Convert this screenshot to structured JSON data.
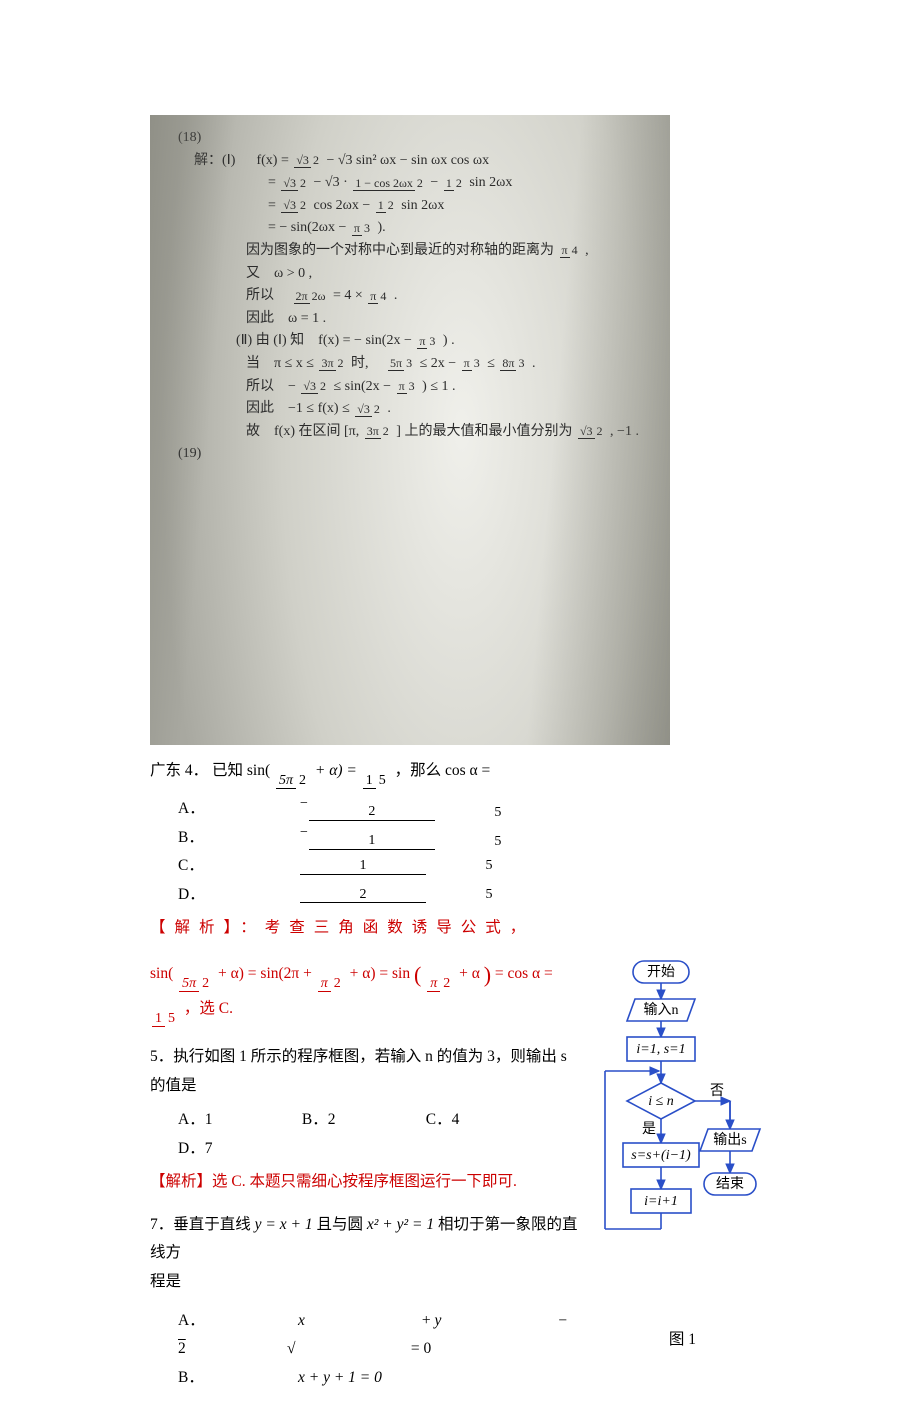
{
  "photo": {
    "qnum": "(18)",
    "header": "解：(Ⅰ)",
    "expr_l1_lhs": "f(x) =",
    "expr_l1_rhs_a": " − √3 sin² ωx − sin ωx cos ωx",
    "expr_l2_a": " − √3 · ",
    "expr_l2_b": "1 − cos 2ωx",
    "expr_l2_c": " − ",
    "expr_l2_d": " sin 2ωx",
    "expr_l3_a": " cos 2ωx − ",
    "expr_l3_b": " sin 2ωx",
    "expr_l4": "= − sin(2ωx − ",
    "expr_l4_b": ").",
    "text1": "因为图象的一个对称中心到最近的对称轴的距离为 ",
    "text1_end": " ,",
    "text2": "又　ω > 0 ,",
    "text3": "所以　",
    "text3_b": " = 4 × ",
    "text4": "因此　ω = 1 .",
    "part2": "(Ⅱ) 由 (Ⅰ) 知　f(x) = − sin(2x − ",
    "part2_end": ") .",
    "line5a": "当　π ≤ x ≤ ",
    "line5b": " 时,　",
    "line5c": " ≤ 2x − ",
    "line5d": " ≤ ",
    "line6a": "所以　− ",
    "line6b": " ≤ sin(2x − ",
    "line6c": ") ≤ 1 .",
    "line7a": "因此　−1 ≤ f(x) ≤ ",
    "line7_end": " .",
    "line8a": "故　f(x) 在区间 [π, ",
    "line8b": "] 上的最大值和最小值分别为 ",
    "line8c": " , −1 .",
    "footer": "(19)",
    "frac_sqrt3_2_n": "√3",
    "frac_sqrt3_2_d": "2",
    "half_n": "1",
    "half_d": "2",
    "pi3_n": "π",
    "pi3_d": "3",
    "pi4_n": "π",
    "pi4_d": "4",
    "tp2w_n": "2π",
    "tp2w_d": "2ω",
    "tp3_2_n": "3π",
    "tp3_2_d": "2",
    "fp5_3_n": "5π",
    "fp5_3_d": "3",
    "ep8_3_n": "8π",
    "ep8_3_d": "3"
  },
  "q4": {
    "prefix": "广东 4．",
    "stem_a": "已知 sin(",
    "stem_frac_n": "5π",
    "stem_frac_d": "2",
    "stem_b": " + α) = ",
    "stem_val_n": "1",
    "stem_val_d": "5",
    "stem_c": "，那么 cos α =",
    "optA_lbl": "A．",
    "optA_n": "2",
    "optA_d": "5",
    "optB_lbl": "B．",
    "optB_n": "1",
    "optB_d": "5",
    "optC_lbl": "C．",
    "optC_n": "1",
    "optC_d": "5",
    "optD_lbl": "D．",
    "optD_n": "2",
    "optD_d": "5",
    "ana_head": "【解析】：考查三角函数诱导公式，",
    "ana_line_a": "sin(",
    "ana_line_b": " + α) = sin(2π + ",
    "ana_pihalf_n": "π",
    "ana_pihalf_d": "2",
    "ana_line_c": " + α) = sin",
    "ana_line_d": " + α",
    "ana_line_e": " = cos α = ",
    "ana_line_f": "，选 C."
  },
  "q5": {
    "stem": "5．执行如图 1 所示的程序框图，若输入 n 的值为 3，则输出 s 的值是",
    "A": "A．1",
    "B": "B．2",
    "C": "C．4",
    "D": "D．7",
    "ana": "【解析】选 C. 本题只需细心按程序框图运行一下即可."
  },
  "q7": {
    "stem_a": "7．垂直于直线 ",
    "eq1": "y = x + 1",
    "stem_b": " 且与圆 ",
    "eq2": "x² + y² = 1",
    "stem_c": " 相切于第一象限的直线方",
    "stem_d": "程是",
    "optA_lbl": "A．",
    "optA": "x + y − √2 = 0",
    "optB_lbl": "B．",
    "optB": "x + y + 1 = 0"
  },
  "flow": {
    "start": "开始",
    "input": "输入n",
    "init": "i=1, s=1",
    "cond": "i ≤ n",
    "yes": "是",
    "no": "否",
    "step1": "s=s+(i−1)",
    "step2": "i=i+1",
    "output": "输出s",
    "end": "结束",
    "caption": "图 1",
    "stroke": "#2a4fc8",
    "fill": "#ffffff",
    "stroke_w": 1.6,
    "font_family": "Times New Roman, SimSun, serif",
    "font_size": 14
  }
}
